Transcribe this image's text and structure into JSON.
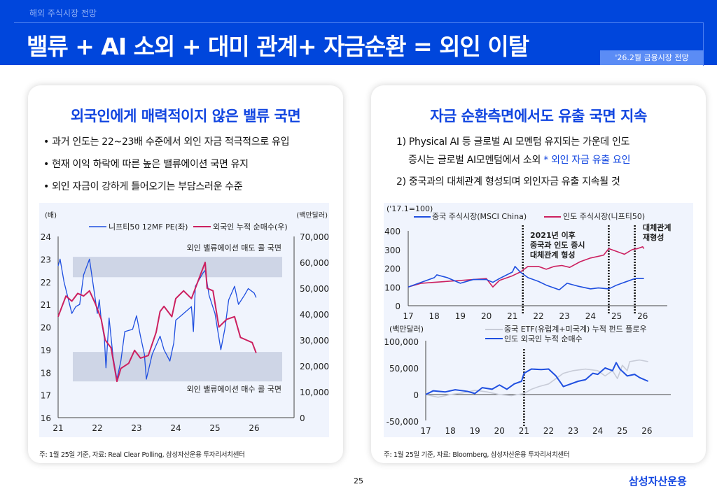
{
  "header": {
    "section": "해외 주식시장 전망",
    "title": "밸류 + AI 소외 + 대미 관계+ 자금순환 = 외인 이탈",
    "badge": "'26.2월 금융시장 전망"
  },
  "left": {
    "heading": "외국인에게 매력적이지 않은 밸류 국면",
    "bullets": [
      "• 과거 인도는 22~23배 수준에서 외인 자금 적극적으로 유입",
      "• 현재 이익 하락에 따른 높은 밸류에이션 국면 유지",
      "• 외인 자금이 강하게 들어오기는 부담스러운 수준"
    ],
    "note": "주: 1월 25일 기준, 자료: Real Clear Polling, 삼성자산운용 투자리서치센터"
  },
  "right": {
    "heading": "자금 순환측면에서도 유출 국면 지속",
    "line1": "1) Physical AI 등 글로벌 AI 모멘텀 유지되는 가운데 인도",
    "line2a": "증시는 글로벌 AI모멘텀에서 소외 ",
    "line2b": "* 외인 자금 유출 요인",
    "line3": "2) 중국과의 대체관계 형성되며 외인자금 유출 지속될 것",
    "note": "주: 1월 25일 기준, 자료: Bloomberg, 삼성자산운용 투자리서치센터"
  },
  "footer": {
    "page": "25",
    "logo": "삼성자산운용"
  },
  "chart_data": [
    {
      "type": "line",
      "left_unit": "(배)",
      "right_unit": "(백만달러)",
      "xticks": [
        "21",
        "22",
        "23",
        "24",
        "25",
        "26"
      ],
      "ylim_left": [
        16,
        24
      ],
      "ylim_right": [
        0,
        70000
      ],
      "yticks_left": [
        "24",
        "23",
        "22",
        "21",
        "20",
        "19",
        "18",
        "17",
        "16"
      ],
      "yticks_right": [
        "70,000",
        "60,000",
        "50,000",
        "40,000",
        "30,000",
        "20,000",
        "10,000",
        "0"
      ],
      "bands": [
        {
          "label": "외인 밸류에이션 매도 콜 국면",
          "range": [
            22.2,
            23.1
          ]
        },
        {
          "label": "외인 밸류에이션 매수 콜 국면",
          "range": [
            17.6,
            18.9
          ]
        }
      ],
      "series": [
        {
          "name": "니프티50 12MF PE(좌)",
          "axis": "left",
          "color": "#1f4fe0",
          "x": [
            21.0,
            21.05,
            21.15,
            21.25,
            21.35,
            21.45,
            21.55,
            21.65,
            21.8,
            21.9,
            22.0,
            22.05,
            22.1,
            22.18,
            22.22,
            22.3,
            22.4,
            22.5,
            22.6,
            22.7,
            22.9,
            23.0,
            23.1,
            23.2,
            23.25,
            23.4,
            23.6,
            23.7,
            23.85,
            23.95,
            24.0,
            24.2,
            24.4,
            24.45,
            24.5,
            24.7,
            24.75,
            24.85,
            25.0,
            25.15,
            25.25,
            25.35,
            25.5,
            25.6,
            25.75,
            25.85,
            26.0,
            26.05
          ],
          "y": [
            22.7,
            23.0,
            22.0,
            21.3,
            20.6,
            20.9,
            21.0,
            22.3,
            23.0,
            21.8,
            20.6,
            21.2,
            20.3,
            19.5,
            18.2,
            20.4,
            18.7,
            17.7,
            18.5,
            19.8,
            19.9,
            20.5,
            19.6,
            18.8,
            17.7,
            18.8,
            19.6,
            19.0,
            18.5,
            19.3,
            20.3,
            20.6,
            20.9,
            19.8,
            21.8,
            22.4,
            22.5,
            21.4,
            20.6,
            19.0,
            19.9,
            21.2,
            21.8,
            21.0,
            21.4,
            21.7,
            21.5,
            21.3
          ]
        },
        {
          "name": "외국인 누적 순매수(우)",
          "axis": "right",
          "color": "#cc2060",
          "x": [
            21.0,
            21.2,
            21.35,
            21.5,
            21.65,
            21.8,
            21.95,
            22.1,
            22.2,
            22.35,
            22.5,
            22.6,
            22.8,
            22.95,
            23.1,
            23.3,
            23.5,
            23.6,
            23.7,
            23.9,
            24.0,
            24.2,
            24.4,
            24.55,
            24.75,
            24.8,
            24.95,
            25.1,
            25.3,
            25.5,
            25.65,
            25.8,
            25.95,
            26.05
          ],
          "y": [
            39000,
            47000,
            45000,
            48000,
            47000,
            49000,
            44000,
            38000,
            30000,
            27000,
            14000,
            19000,
            21000,
            26000,
            23000,
            24000,
            33000,
            41000,
            43000,
            39000,
            46000,
            49000,
            46000,
            52000,
            60000,
            50000,
            49000,
            35000,
            38000,
            39000,
            31000,
            30000,
            29000,
            25000
          ]
        }
      ]
    },
    {
      "type": "line",
      "unit": "('17.1=100)",
      "xticks": [
        "17",
        "18",
        "19",
        "20",
        "21",
        "22",
        "23",
        "24",
        "25",
        "26"
      ],
      "ylim": [
        0,
        400
      ],
      "yticks": [
        "400",
        "300",
        "200",
        "100",
        "0"
      ],
      "vlines": [
        21.4,
        24.7,
        25.7
      ],
      "annotations": [
        "2021년 이후",
        "중국과 인도 증시",
        "대체관계 형성",
        "대체관계",
        "재형성"
      ],
      "series": [
        {
          "name": "중국 주식시장(MSCI China)",
          "color": "#1f4fe0",
          "x": [
            17,
            18,
            18.1,
            18.5,
            19,
            19.5,
            20,
            20.25,
            20.5,
            21,
            21.1,
            21.3,
            21.6,
            22,
            22.3,
            22.8,
            23.1,
            23.5,
            24,
            24.3,
            24.7,
            25,
            25.3,
            25.7,
            26.05
          ],
          "y": [
            100,
            150,
            165,
            150,
            120,
            140,
            140,
            125,
            145,
            180,
            210,
            180,
            150,
            130,
            110,
            85,
            120,
            105,
            90,
            95,
            90,
            110,
            125,
            145,
            145
          ]
        },
        {
          "name": "인도 주식시장(니프티50)",
          "color": "#cc2060",
          "x": [
            17,
            17.5,
            18,
            18.5,
            19,
            19.5,
            20,
            20.25,
            20.5,
            21,
            21.3,
            21.6,
            22,
            22.3,
            22.6,
            22.9,
            23.2,
            23.6,
            24,
            24.5,
            24.7,
            25,
            25.3,
            25.6,
            25.8,
            26,
            26.05
          ],
          "y": [
            100,
            120,
            125,
            130,
            135,
            140,
            145,
            100,
            135,
            160,
            180,
            210,
            210,
            195,
            210,
            215,
            205,
            235,
            255,
            270,
            305,
            290,
            275,
            300,
            305,
            315,
            305
          ]
        }
      ]
    },
    {
      "type": "line",
      "unit": "(백만달러)",
      "xticks": [
        "17",
        "18",
        "19",
        "20",
        "21",
        "22",
        "23",
        "24",
        "25",
        "26"
      ],
      "ylim": [
        -50000,
        100000
      ],
      "yticks": [
        "100,000",
        "50,000",
        "0",
        "-50,000"
      ],
      "vlines": [
        21
      ],
      "series": [
        {
          "name": "중국 ETF(유럽계+미국계) 누적 펀드 플로우",
          "color": "#c8ccd8",
          "x": [
            17,
            17.5,
            18,
            18.5,
            19,
            19.5,
            20,
            20.5,
            21,
            21.3,
            21.6,
            22,
            22.3,
            22.6,
            23,
            23.5,
            24,
            24.3,
            24.6,
            24.8,
            25,
            25.2,
            25.3,
            25.7,
            26.05
          ],
          "y": [
            0,
            -5000,
            0,
            3000,
            8000,
            5000,
            0,
            -2000,
            2000,
            10000,
            15000,
            20000,
            30000,
            40000,
            45000,
            48000,
            45000,
            35000,
            45000,
            30000,
            55000,
            45000,
            62000,
            65000,
            62000
          ]
        },
        {
          "name": "인도 외국인 누적 순매수",
          "color": "#1f4fe0",
          "x": [
            17,
            17.3,
            17.8,
            18.2,
            18.7,
            19,
            19.3,
            19.7,
            20,
            20.3,
            20.6,
            20.9,
            21,
            21.3,
            21.7,
            22,
            22.3,
            22.6,
            22.9,
            23.2,
            23.5,
            23.8,
            24,
            24.3,
            24.6,
            24.75,
            24.9,
            25.2,
            25.5,
            25.7,
            26.05
          ],
          "y": [
            0,
            7000,
            5000,
            9000,
            6000,
            2000,
            13000,
            10000,
            18000,
            10000,
            20000,
            25000,
            40000,
            48000,
            47000,
            48000,
            35000,
            15000,
            20000,
            25000,
            28000,
            40000,
            38000,
            50000,
            45000,
            60000,
            48000,
            35000,
            38000,
            32000,
            25000
          ]
        }
      ]
    }
  ]
}
